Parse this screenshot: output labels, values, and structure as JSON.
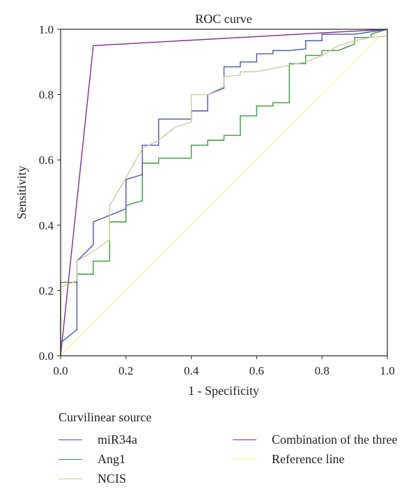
{
  "chart_data": {
    "type": "line",
    "title": "ROC curve",
    "xlabel": "1 - Specificity",
    "ylabel": "Sensitivity",
    "xlim": [
      0,
      1
    ],
    "ylim": [
      0,
      1
    ],
    "xticks": [
      "0.0",
      "0.2",
      "0.4",
      "0.6",
      "0.8",
      "1.0"
    ],
    "yticks": [
      "0.0",
      "0.2",
      "0.4",
      "0.6",
      "0.8",
      "1.0"
    ],
    "grid": false,
    "legend_title": "Curvilinear source",
    "legend_position": "bottom",
    "series": [
      {
        "name": "miR34a",
        "color": "#4a57a8",
        "step": true,
        "points": [
          [
            0,
            0
          ],
          [
            0,
            0.04
          ],
          [
            0.05,
            0.08
          ],
          [
            0.05,
            0.29
          ],
          [
            0.1,
            0.34
          ],
          [
            0.1,
            0.41
          ],
          [
            0.2,
            0.45
          ],
          [
            0.2,
            0.54
          ],
          [
            0.25,
            0.555
          ],
          [
            0.25,
            0.645
          ],
          [
            0.3,
            0.645
          ],
          [
            0.3,
            0.725
          ],
          [
            0.4,
            0.725
          ],
          [
            0.4,
            0.75
          ],
          [
            0.45,
            0.75
          ],
          [
            0.45,
            0.8
          ],
          [
            0.5,
            0.82
          ],
          [
            0.5,
            0.885
          ],
          [
            0.55,
            0.885
          ],
          [
            0.55,
            0.9
          ],
          [
            0.6,
            0.9
          ],
          [
            0.6,
            0.925
          ],
          [
            0.65,
            0.925
          ],
          [
            0.65,
            0.935
          ],
          [
            0.7,
            0.935
          ],
          [
            0.75,
            0.94
          ],
          [
            0.75,
            0.965
          ],
          [
            0.8,
            0.965
          ],
          [
            0.8,
            0.985
          ],
          [
            0.9,
            0.985
          ],
          [
            1.0,
            1.0
          ]
        ]
      },
      {
        "name": "Ang1",
        "color": "#3c9a3c",
        "step": true,
        "points": [
          [
            0,
            0
          ],
          [
            0,
            0.225
          ],
          [
            0.05,
            0.225
          ],
          [
            0.05,
            0.25
          ],
          [
            0.1,
            0.25
          ],
          [
            0.1,
            0.29
          ],
          [
            0.15,
            0.29
          ],
          [
            0.15,
            0.41
          ],
          [
            0.2,
            0.41
          ],
          [
            0.2,
            0.46
          ],
          [
            0.25,
            0.475
          ],
          [
            0.25,
            0.59
          ],
          [
            0.3,
            0.59
          ],
          [
            0.3,
            0.605
          ],
          [
            0.4,
            0.605
          ],
          [
            0.4,
            0.645
          ],
          [
            0.45,
            0.645
          ],
          [
            0.45,
            0.66
          ],
          [
            0.5,
            0.66
          ],
          [
            0.5,
            0.675
          ],
          [
            0.55,
            0.675
          ],
          [
            0.55,
            0.735
          ],
          [
            0.6,
            0.735
          ],
          [
            0.6,
            0.765
          ],
          [
            0.65,
            0.765
          ],
          [
            0.65,
            0.775
          ],
          [
            0.7,
            0.775
          ],
          [
            0.7,
            0.895
          ],
          [
            0.75,
            0.895
          ],
          [
            0.75,
            0.92
          ],
          [
            0.8,
            0.92
          ],
          [
            0.8,
            0.935
          ],
          [
            0.85,
            0.935
          ],
          [
            0.9,
            0.955
          ],
          [
            0.9,
            0.975
          ],
          [
            0.95,
            0.975
          ],
          [
            0.95,
            0.985
          ],
          [
            1.0,
            1.0
          ]
        ]
      },
      {
        "name": "NCIS",
        "color": "#cfc9a2",
        "step": false,
        "points": [
          [
            0,
            0
          ],
          [
            0,
            0.21
          ],
          [
            0.05,
            0.23
          ],
          [
            0.05,
            0.29
          ],
          [
            0.1,
            0.32
          ],
          [
            0.15,
            0.355
          ],
          [
            0.15,
            0.46
          ],
          [
            0.2,
            0.545
          ],
          [
            0.25,
            0.635
          ],
          [
            0.3,
            0.66
          ],
          [
            0.35,
            0.7
          ],
          [
            0.4,
            0.715
          ],
          [
            0.4,
            0.8
          ],
          [
            0.45,
            0.8
          ],
          [
            0.5,
            0.825
          ],
          [
            0.5,
            0.855
          ],
          [
            0.55,
            0.86
          ],
          [
            0.55,
            0.87
          ],
          [
            0.6,
            0.87
          ],
          [
            0.65,
            0.88
          ],
          [
            0.7,
            0.89
          ],
          [
            0.75,
            0.9
          ],
          [
            0.8,
            0.92
          ],
          [
            0.85,
            0.95
          ],
          [
            0.9,
            0.965
          ],
          [
            0.95,
            0.975
          ],
          [
            1.0,
            0.98
          ],
          [
            1.0,
            1.0
          ]
        ]
      },
      {
        "name": "Combination of the three",
        "color": "#7b2d8e",
        "step": false,
        "points": [
          [
            0,
            0
          ],
          [
            0.1,
            0.95
          ],
          [
            1.0,
            1.0
          ]
        ]
      },
      {
        "name": "Reference line",
        "color": "#f3f0a0",
        "step": false,
        "points": [
          [
            0,
            0
          ],
          [
            1,
            1
          ]
        ]
      }
    ]
  }
}
